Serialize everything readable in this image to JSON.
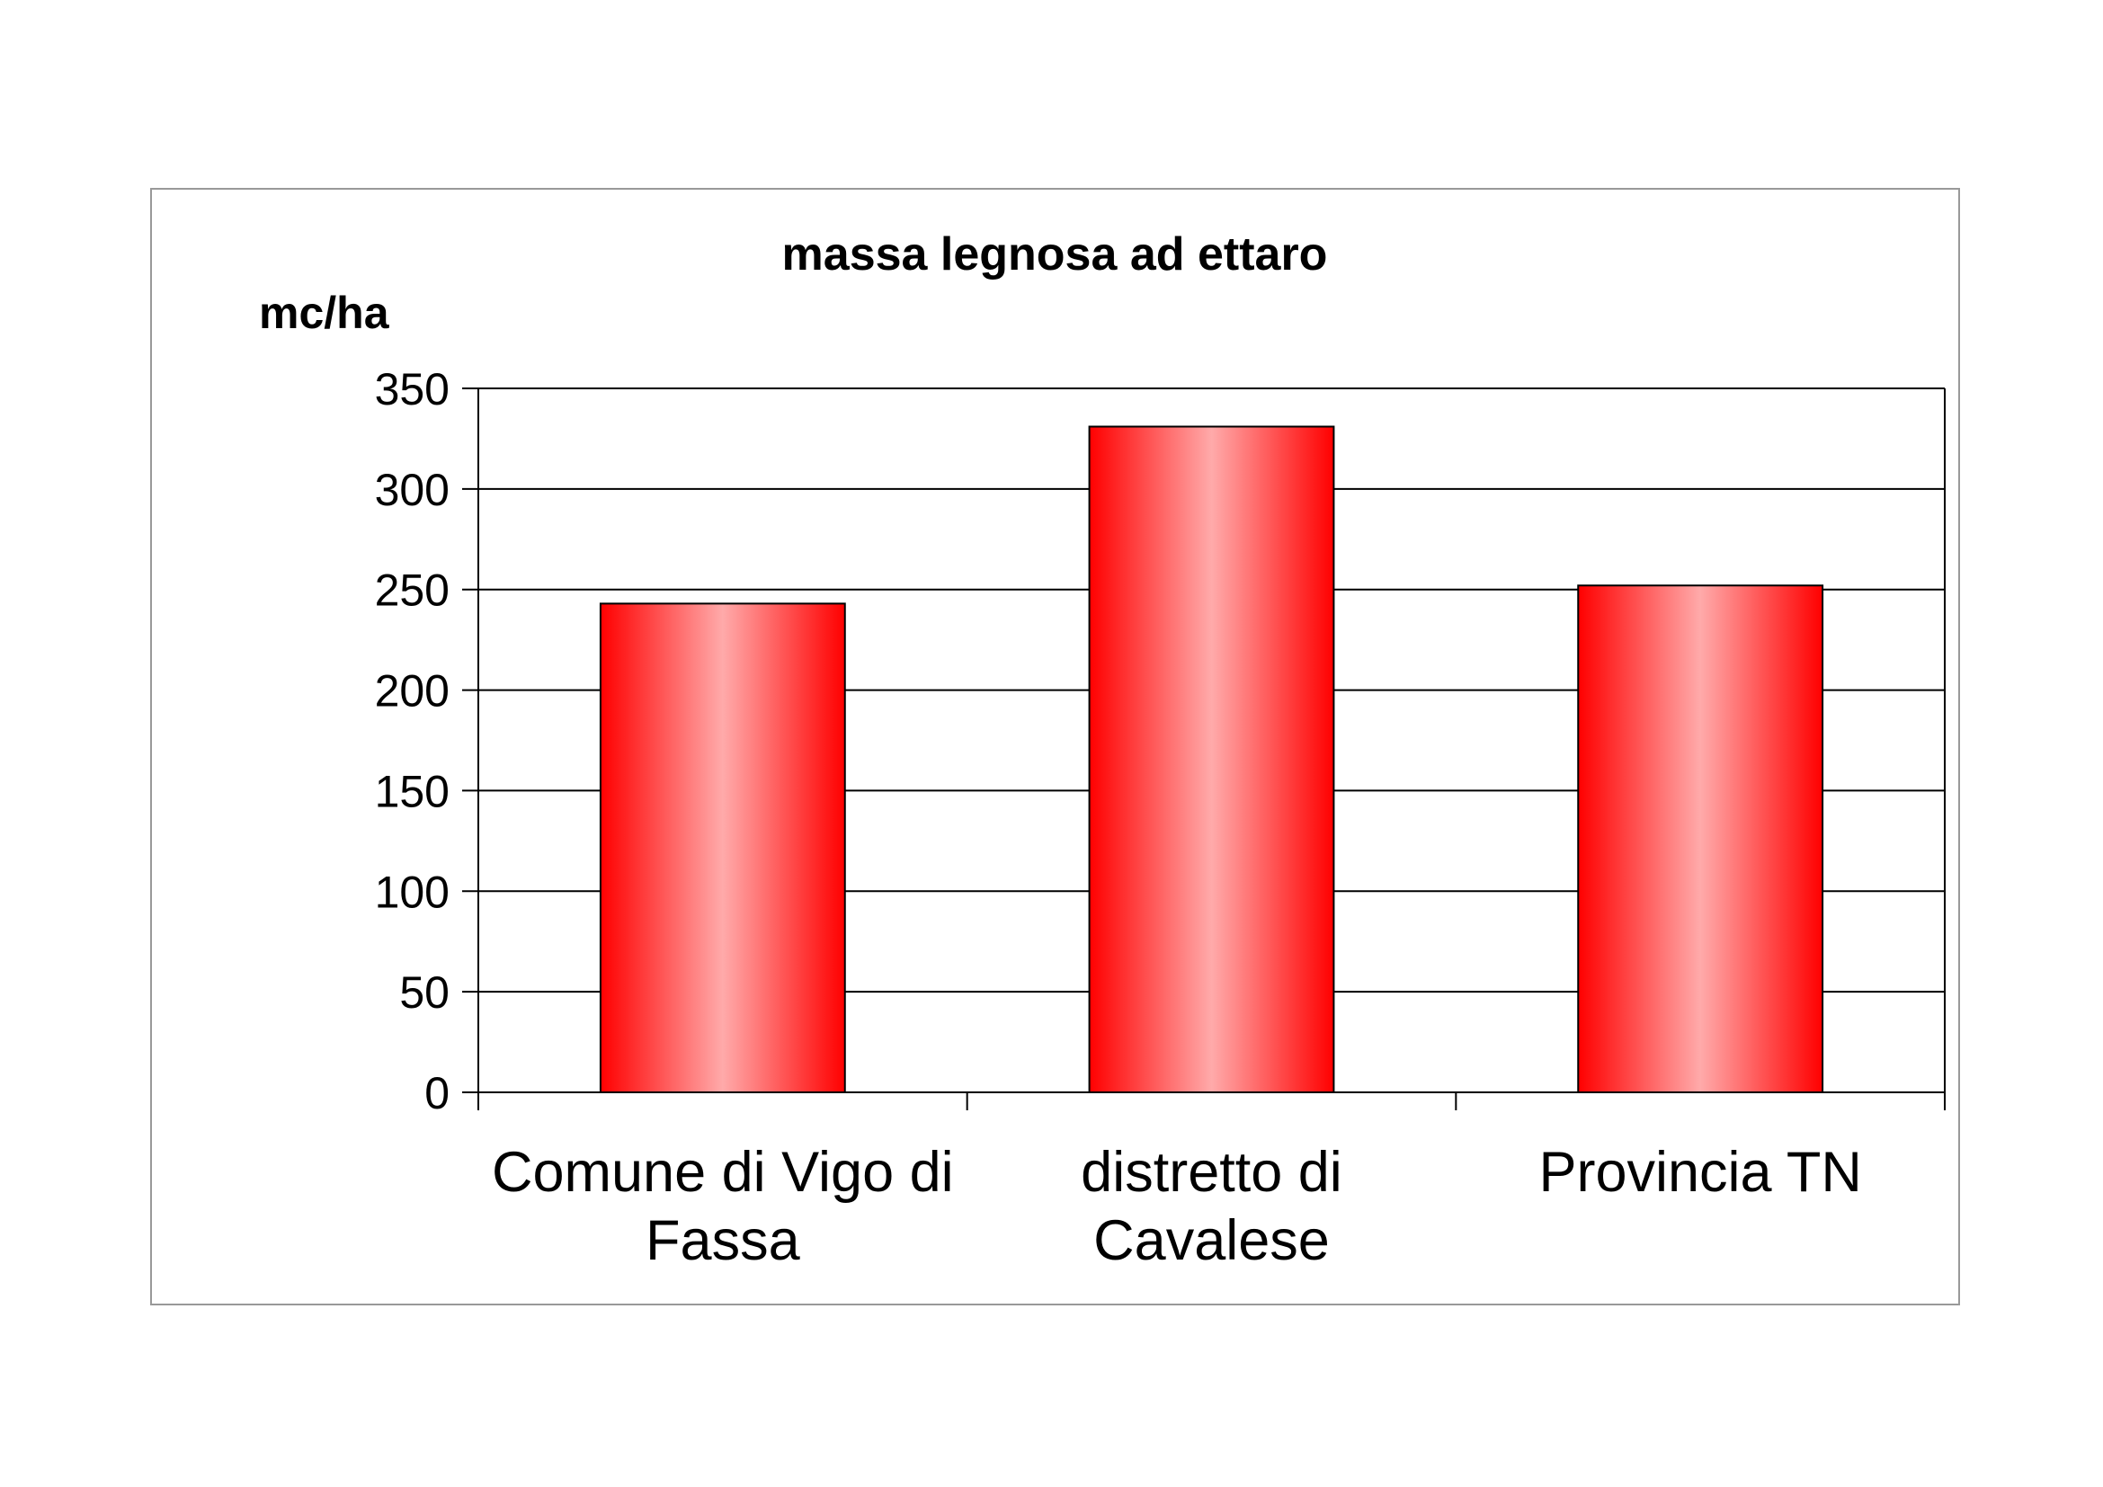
{
  "chart_data": {
    "type": "bar",
    "title": "massa legnosa ad ettaro",
    "ylabel": "mc/ha",
    "xlabel": "",
    "categories": [
      [
        "Comune di Vigo di",
        "Fassa"
      ],
      [
        "distretto di",
        "Cavalese"
      ],
      [
        "Provincia TN"
      ]
    ],
    "values": [
      243,
      331,
      252
    ],
    "ylim": [
      0,
      350
    ],
    "yticks": [
      0,
      50,
      100,
      150,
      200,
      250,
      300,
      350
    ],
    "grid": true,
    "legend": "none",
    "colors": {
      "bar_edge": "#ff0000",
      "bar_center": "#ffaaaa",
      "bar_outline": "#000000",
      "gridline": "#000000",
      "frame": "#999999"
    }
  }
}
